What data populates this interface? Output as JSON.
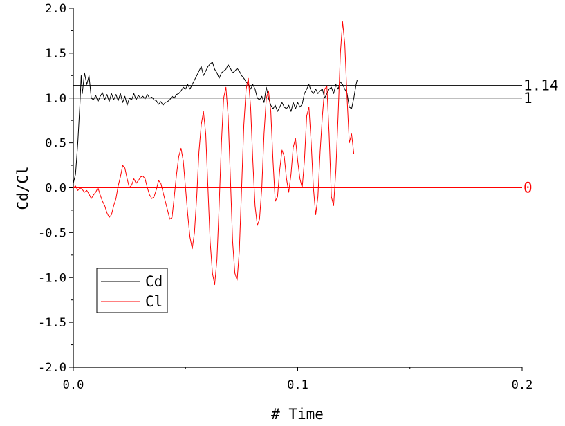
{
  "chart_data": {
    "type": "line",
    "xlabel": "# Time",
    "ylabel": "Cd/Cl",
    "xlim": [
      0.0,
      0.2
    ],
    "ylim": [
      -2.0,
      2.0
    ],
    "x_ticks": [
      "0.0",
      "0.1",
      "0.2"
    ],
    "x_tick_values": [
      0.0,
      0.1,
      0.2
    ],
    "y_ticks": [
      "2.0",
      "1.5",
      "1.0",
      "0.5",
      "0.0",
      "-0.5",
      "-1.0",
      "-1.5",
      "-2.0"
    ],
    "y_tick_values": [
      2.0,
      1.5,
      1.0,
      0.5,
      0.0,
      -0.5,
      -1.0,
      -1.5,
      -2.0
    ],
    "grid": false,
    "legend_position": "bottom-left",
    "reference_lines": [
      {
        "y": 1.14,
        "label": "1.14",
        "color": "#000000"
      },
      {
        "y": 1.0,
        "label": "1",
        "color": "#000000"
      },
      {
        "y": 0.0,
        "label": "0",
        "color": "#ff0000"
      }
    ],
    "series": [
      {
        "name": "Cd",
        "color": "#000000",
        "points": [
          [
            0.0,
            0.05
          ],
          [
            0.001,
            0.15
          ],
          [
            0.002,
            0.5
          ],
          [
            0.003,
            0.95
          ],
          [
            0.0035,
            1.25
          ],
          [
            0.004,
            1.05
          ],
          [
            0.005,
            1.28
          ],
          [
            0.006,
            1.15
          ],
          [
            0.007,
            1.25
          ],
          [
            0.008,
            1.0
          ],
          [
            0.009,
            0.98
          ],
          [
            0.01,
            1.03
          ],
          [
            0.011,
            0.96
          ],
          [
            0.012,
            1.02
          ],
          [
            0.013,
            1.06
          ],
          [
            0.014,
            0.98
          ],
          [
            0.015,
            1.04
          ],
          [
            0.016,
            0.96
          ],
          [
            0.017,
            1.05
          ],
          [
            0.018,
            0.98
          ],
          [
            0.019,
            1.04
          ],
          [
            0.02,
            0.97
          ],
          [
            0.021,
            1.05
          ],
          [
            0.022,
            0.95
          ],
          [
            0.023,
            1.02
          ],
          [
            0.024,
            0.92
          ],
          [
            0.025,
            1.0
          ],
          [
            0.026,
            0.98
          ],
          [
            0.027,
            1.05
          ],
          [
            0.028,
            0.98
          ],
          [
            0.029,
            1.03
          ],
          [
            0.03,
            1.0
          ],
          [
            0.031,
            1.02
          ],
          [
            0.032,
            0.99
          ],
          [
            0.033,
            1.04
          ],
          [
            0.034,
            1.0
          ],
          [
            0.035,
            1.01
          ],
          [
            0.036,
            0.98
          ],
          [
            0.037,
            0.97
          ],
          [
            0.038,
            0.93
          ],
          [
            0.039,
            0.96
          ],
          [
            0.04,
            0.92
          ],
          [
            0.041,
            0.95
          ],
          [
            0.042,
            0.96
          ],
          [
            0.043,
            0.98
          ],
          [
            0.044,
            1.02
          ],
          [
            0.045,
            1.0
          ],
          [
            0.046,
            1.04
          ],
          [
            0.047,
            1.05
          ],
          [
            0.048,
            1.08
          ],
          [
            0.049,
            1.12
          ],
          [
            0.05,
            1.1
          ],
          [
            0.051,
            1.15
          ],
          [
            0.052,
            1.1
          ],
          [
            0.053,
            1.15
          ],
          [
            0.054,
            1.2
          ],
          [
            0.055,
            1.25
          ],
          [
            0.056,
            1.3
          ],
          [
            0.057,
            1.35
          ],
          [
            0.058,
            1.25
          ],
          [
            0.059,
            1.3
          ],
          [
            0.06,
            1.35
          ],
          [
            0.061,
            1.38
          ],
          [
            0.062,
            1.4
          ],
          [
            0.063,
            1.32
          ],
          [
            0.064,
            1.28
          ],
          [
            0.065,
            1.22
          ],
          [
            0.066,
            1.28
          ],
          [
            0.067,
            1.3
          ],
          [
            0.068,
            1.32
          ],
          [
            0.069,
            1.37
          ],
          [
            0.07,
            1.33
          ],
          [
            0.071,
            1.28
          ],
          [
            0.072,
            1.3
          ],
          [
            0.073,
            1.33
          ],
          [
            0.074,
            1.3
          ],
          [
            0.075,
            1.25
          ],
          [
            0.076,
            1.22
          ],
          [
            0.077,
            1.18
          ],
          [
            0.078,
            1.15
          ],
          [
            0.079,
            1.1
          ],
          [
            0.08,
            1.15
          ],
          [
            0.081,
            1.1
          ],
          [
            0.082,
            1.0
          ],
          [
            0.083,
            0.98
          ],
          [
            0.084,
            1.02
          ],
          [
            0.085,
            0.95
          ],
          [
            0.086,
            1.12
          ],
          [
            0.087,
            1.0
          ],
          [
            0.088,
            0.92
          ],
          [
            0.089,
            0.88
          ],
          [
            0.09,
            0.92
          ],
          [
            0.091,
            0.85
          ],
          [
            0.092,
            0.9
          ],
          [
            0.093,
            0.95
          ],
          [
            0.094,
            0.9
          ],
          [
            0.095,
            0.88
          ],
          [
            0.096,
            0.92
          ],
          [
            0.097,
            0.85
          ],
          [
            0.098,
            0.95
          ],
          [
            0.099,
            0.88
          ],
          [
            0.1,
            0.95
          ],
          [
            0.101,
            0.9
          ],
          [
            0.102,
            0.93
          ],
          [
            0.103,
            1.05
          ],
          [
            0.104,
            1.1
          ],
          [
            0.105,
            1.15
          ],
          [
            0.106,
            1.08
          ],
          [
            0.107,
            1.05
          ],
          [
            0.108,
            1.1
          ],
          [
            0.109,
            1.05
          ],
          [
            0.11,
            1.08
          ],
          [
            0.111,
            1.1
          ],
          [
            0.112,
            1.0
          ],
          [
            0.113,
            1.05
          ],
          [
            0.114,
            1.1
          ],
          [
            0.115,
            1.12
          ],
          [
            0.116,
            1.05
          ],
          [
            0.117,
            1.15
          ],
          [
            0.118,
            1.1
          ],
          [
            0.119,
            1.18
          ],
          [
            0.12,
            1.15
          ],
          [
            0.121,
            1.1
          ],
          [
            0.122,
            1.05
          ],
          [
            0.123,
            0.9
          ],
          [
            0.124,
            0.88
          ],
          [
            0.125,
            1.0
          ],
          [
            0.126,
            1.15
          ],
          [
            0.1265,
            1.2
          ]
        ]
      },
      {
        "name": "Cl",
        "color": "#ff0000",
        "points": [
          [
            0.0,
            0.0
          ],
          [
            0.001,
            0.02
          ],
          [
            0.002,
            -0.03
          ],
          [
            0.003,
            0.0
          ],
          [
            0.004,
            -0.02
          ],
          [
            0.005,
            -0.05
          ],
          [
            0.006,
            -0.03
          ],
          [
            0.007,
            -0.07
          ],
          [
            0.008,
            -0.12
          ],
          [
            0.009,
            -0.08
          ],
          [
            0.01,
            -0.05
          ],
          [
            0.011,
            0.0
          ],
          [
            0.012,
            -0.08
          ],
          [
            0.013,
            -0.15
          ],
          [
            0.014,
            -0.2
          ],
          [
            0.015,
            -0.28
          ],
          [
            0.016,
            -0.33
          ],
          [
            0.017,
            -0.3
          ],
          [
            0.018,
            -0.2
          ],
          [
            0.019,
            -0.12
          ],
          [
            0.02,
            0.02
          ],
          [
            0.021,
            0.12
          ],
          [
            0.022,
            0.25
          ],
          [
            0.023,
            0.22
          ],
          [
            0.024,
            0.1
          ],
          [
            0.025,
            0.0
          ],
          [
            0.026,
            0.03
          ],
          [
            0.027,
            0.1
          ],
          [
            0.028,
            0.05
          ],
          [
            0.029,
            0.08
          ],
          [
            0.03,
            0.12
          ],
          [
            0.031,
            0.13
          ],
          [
            0.032,
            0.1
          ],
          [
            0.033,
            0.0
          ],
          [
            0.034,
            -0.08
          ],
          [
            0.035,
            -0.12
          ],
          [
            0.036,
            -0.1
          ],
          [
            0.037,
            -0.02
          ],
          [
            0.038,
            0.08
          ],
          [
            0.039,
            0.05
          ],
          [
            0.04,
            -0.05
          ],
          [
            0.041,
            -0.15
          ],
          [
            0.042,
            -0.25
          ],
          [
            0.043,
            -0.35
          ],
          [
            0.044,
            -0.33
          ],
          [
            0.045,
            -0.1
          ],
          [
            0.046,
            0.15
          ],
          [
            0.047,
            0.35
          ],
          [
            0.048,
            0.44
          ],
          [
            0.049,
            0.3
          ],
          [
            0.05,
            0.0
          ],
          [
            0.051,
            -0.3
          ],
          [
            0.052,
            -0.55
          ],
          [
            0.053,
            -0.68
          ],
          [
            0.054,
            -0.5
          ],
          [
            0.055,
            -0.1
          ],
          [
            0.056,
            0.4
          ],
          [
            0.057,
            0.7
          ],
          [
            0.058,
            0.85
          ],
          [
            0.059,
            0.6
          ],
          [
            0.06,
            0.0
          ],
          [
            0.061,
            -0.6
          ],
          [
            0.062,
            -0.95
          ],
          [
            0.063,
            -1.08
          ],
          [
            0.064,
            -0.8
          ],
          [
            0.065,
            -0.2
          ],
          [
            0.066,
            0.5
          ],
          [
            0.067,
            1.0
          ],
          [
            0.068,
            1.12
          ],
          [
            0.069,
            0.8
          ],
          [
            0.07,
            0.1
          ],
          [
            0.071,
            -0.6
          ],
          [
            0.072,
            -0.95
          ],
          [
            0.073,
            -1.03
          ],
          [
            0.074,
            -0.7
          ],
          [
            0.075,
            0.0
          ],
          [
            0.076,
            0.7
          ],
          [
            0.077,
            1.1
          ],
          [
            0.078,
            1.22
          ],
          [
            0.079,
            0.9
          ],
          [
            0.08,
            0.3
          ],
          [
            0.081,
            -0.2
          ],
          [
            0.082,
            -0.42
          ],
          [
            0.083,
            -0.35
          ],
          [
            0.084,
            0.0
          ],
          [
            0.085,
            0.6
          ],
          [
            0.086,
            1.0
          ],
          [
            0.087,
            1.08
          ],
          [
            0.088,
            0.85
          ],
          [
            0.089,
            0.3
          ],
          [
            0.09,
            -0.15
          ],
          [
            0.091,
            -0.1
          ],
          [
            0.092,
            0.2
          ],
          [
            0.093,
            0.42
          ],
          [
            0.094,
            0.35
          ],
          [
            0.095,
            0.1
          ],
          [
            0.096,
            -0.05
          ],
          [
            0.097,
            0.15
          ],
          [
            0.098,
            0.45
          ],
          [
            0.099,
            0.55
          ],
          [
            0.1,
            0.3
          ],
          [
            0.101,
            0.1
          ],
          [
            0.102,
            0.0
          ],
          [
            0.103,
            0.3
          ],
          [
            0.104,
            0.8
          ],
          [
            0.105,
            0.9
          ],
          [
            0.106,
            0.5
          ],
          [
            0.107,
            0.0
          ],
          [
            0.108,
            -0.3
          ],
          [
            0.109,
            -0.1
          ],
          [
            0.11,
            0.4
          ],
          [
            0.111,
            0.8
          ],
          [
            0.112,
            1.1
          ],
          [
            0.113,
            1.13
          ],
          [
            0.114,
            0.6
          ],
          [
            0.115,
            -0.1
          ],
          [
            0.116,
            -0.2
          ],
          [
            0.117,
            0.2
          ],
          [
            0.118,
            0.8
          ],
          [
            0.119,
            1.5
          ],
          [
            0.12,
            1.85
          ],
          [
            0.121,
            1.6
          ],
          [
            0.122,
            1.0
          ],
          [
            0.123,
            0.5
          ],
          [
            0.124,
            0.6
          ],
          [
            0.125,
            0.38
          ]
        ]
      }
    ],
    "legend": [
      {
        "label": "Cd",
        "color": "#000000"
      },
      {
        "label": "Cl",
        "color": "#ff0000"
      }
    ]
  }
}
